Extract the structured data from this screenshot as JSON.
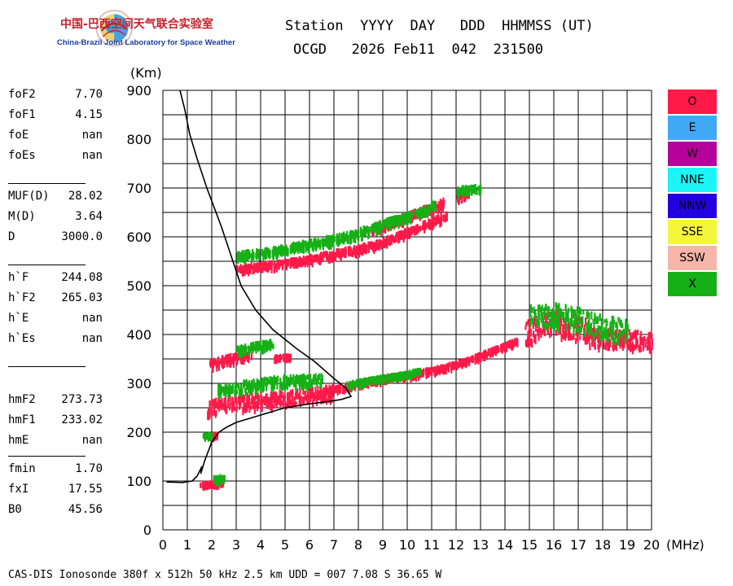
{
  "header": {
    "logo_cn": "中国-巴西空间天气联合实验室",
    "logo_en": "China-Brazil Joint Laboratory for Space Weather",
    "line1": "Station  YYYY  DAY   DDD  HHMMSS (UT)",
    "line2": "OCGD   2026 Feb11  042  231500"
  },
  "params": [
    {
      "label": "foF2",
      "value": "7.70"
    },
    {
      "label": "foF1",
      "value": "4.15"
    },
    {
      "label": "foE",
      "value": "nan"
    },
    {
      "label": "foEs",
      "value": "nan"
    },
    {
      "label": "MUF(D)",
      "value": "28.02"
    },
    {
      "label": "M(D)",
      "value": "3.64"
    },
    {
      "label": "D",
      "value": "3000.0"
    },
    {
      "label": "h`F",
      "value": "244.08"
    },
    {
      "label": "h`F2",
      "value": "265.03"
    },
    {
      "label": "h`E",
      "value": "nan"
    },
    {
      "label": "h`Es",
      "value": "nan"
    },
    {
      "label": "hmF2",
      "value": "273.73"
    },
    {
      "label": "hmF1",
      "value": "233.02"
    },
    {
      "label": "hmE",
      "value": "nan"
    },
    {
      "label": "fmin",
      "value": "1.70"
    },
    {
      "label": "fxI",
      "value": "17.55"
    },
    {
      "label": "B0",
      "value": "45.56"
    }
  ],
  "legend": [
    {
      "label": "O",
      "color": "#ff1a4a"
    },
    {
      "label": "E",
      "color": "#3fa9f5"
    },
    {
      "label": "W",
      "color": "#b5009a"
    },
    {
      "label": "NNE",
      "color": "#1cf5f5"
    },
    {
      "label": "NNW",
      "color": "#2200e0"
    },
    {
      "label": "SSE",
      "color": "#f5f53c"
    },
    {
      "label": "SSW",
      "color": "#f5b5a8"
    },
    {
      "label": "X",
      "color": "#16b016"
    }
  ],
  "footer": "CAS-DIS Ionosonde 380f x 512h 50 kHz 2.5 km UDD = 007 7.08 S 36.65 W",
  "chart_data": {
    "type": "scatter",
    "xlabel": "(MHz)",
    "ylabel": "(Km)",
    "xlim": [
      0,
      20
    ],
    "ylim": [
      0,
      900
    ],
    "xticks": [
      0,
      1,
      2,
      3,
      4,
      5,
      6,
      7,
      8,
      9,
      10,
      11,
      12,
      13,
      14,
      15,
      16,
      17,
      18,
      19,
      20
    ],
    "yticks": [
      0,
      100,
      200,
      300,
      400,
      500,
      600,
      700,
      800,
      900
    ],
    "grid": true,
    "series": [
      {
        "mode": "O",
        "color": "#ff1a4a",
        "segments": [
          {
            "x": [
              1.5,
              2.0,
              2.5
            ],
            "y": [
              98,
              100,
              103
            ],
            "spread": 6
          },
          {
            "x": [
              1.8,
              2.2
            ],
            "y": [
              196,
              200
            ],
            "spread": 4
          },
          {
            "x": [
              1.8,
              2.5,
              3.5,
              4.5,
              5.5,
              6.5,
              7.0
            ],
            "y": [
              255,
              262,
              268,
              272,
              276,
              282,
              288
            ],
            "spread": 30
          },
          {
            "x": [
              1.9,
              2.5,
              3.0,
              3.6
            ],
            "y": [
              345,
              352,
              358,
              362
            ],
            "spread": 15
          },
          {
            "x": [
              4.5,
              5.2
            ],
            "y": [
              358,
              360
            ],
            "spread": 4
          },
          {
            "x": [
              6.5,
              7.5,
              8.5,
              9.5,
              10.5,
              11.5,
              12.5,
              13.5,
              14.5
            ],
            "y": [
              288,
              298,
              310,
              318,
              326,
              337,
              352,
              372,
              392
            ],
            "spread": 8
          },
          {
            "x": [
              14.8,
              15.5,
              16.0,
              16.5,
              17.0,
              17.5
            ],
            "y": [
              405,
              425,
              430,
              420,
              415,
              405
            ],
            "spread": 50
          },
          {
            "x": [
              17.5,
              18.0,
              18.5,
              19.0,
              19.5,
              20.0
            ],
            "y": [
              400,
              395,
              398,
              395,
              392,
              390
            ],
            "spread": 35
          },
          {
            "x": [
              3.0,
              4.0,
              5.0,
              6.0,
              7.0,
              8.0,
              9.0,
              10.0,
              11.0,
              11.6
            ],
            "y": [
              540,
              545,
              550,
              560,
              570,
              580,
              595,
              615,
              635,
              650
            ],
            "spread": 12
          },
          {
            "x": [
              8.5,
              9.5,
              10.5,
              11.5
            ],
            "y": [
              620,
              635,
              655,
              675
            ],
            "spread": 15
          },
          {
            "x": [
              12.0,
              12.5
            ],
            "y": [
              680,
              695
            ],
            "spread": 12
          }
        ]
      },
      {
        "mode": "X",
        "color": "#16b016",
        "segments": [
          {
            "x": [
              2.0,
              2.5
            ],
            "y": [
              108,
              112
            ],
            "spread": 8
          },
          {
            "x": [
              1.6,
              2.0
            ],
            "y": [
              198,
              200
            ],
            "spread": 4
          },
          {
            "x": [
              2.2,
              3.5,
              5.0,
              6.5
            ],
            "y": [
              290,
              300,
              310,
              312
            ],
            "spread": 20
          },
          {
            "x": [
              3.0,
              3.8,
              4.5
            ],
            "y": [
              372,
              380,
              385
            ],
            "spread": 15
          },
          {
            "x": [
              7.5,
              8.5,
              9.5,
              10.5
            ],
            "y": [
              302,
              312,
              320,
              330
            ],
            "spread": 6
          },
          {
            "x": [
              15.0,
              16.0,
              17.0,
              18.0,
              19.0
            ],
            "y": [
              440,
              445,
              435,
              420,
              410
            ],
            "spread": 45
          },
          {
            "x": [
              3.0,
              4.5,
              6.0,
              7.5,
              9.0,
              10.5,
              11.2
            ],
            "y": [
              565,
              575,
              590,
              605,
              630,
              655,
              675
            ],
            "spread": 15
          },
          {
            "x": [
              12.0,
              13.0
            ],
            "y": [
              700,
              705
            ],
            "spread": 10
          }
        ]
      }
    ],
    "trace": {
      "label": "profile",
      "color": "#000000",
      "x": [
        0.15,
        0.8,
        1.2,
        1.4,
        1.5,
        1.6,
        1.55,
        1.7,
        2.0,
        2.3,
        2.6,
        3.0,
        4.0,
        5.0,
        6.0,
        6.8,
        7.3,
        7.7,
        7.5,
        7.0,
        6.2,
        5.5,
        4.5,
        3.8,
        3.2,
        2.8,
        2.4,
        1.8,
        1.4,
        1.1,
        0.9,
        0.7
      ],
      "y": [
        98,
        97,
        100,
        110,
        120,
        130,
        115,
        140,
        180,
        200,
        210,
        220,
        235,
        250,
        258,
        263,
        267,
        273,
        290,
        310,
        345,
        370,
        410,
        450,
        500,
        560,
        620,
        700,
        760,
        810,
        860,
        900
      ]
    }
  }
}
